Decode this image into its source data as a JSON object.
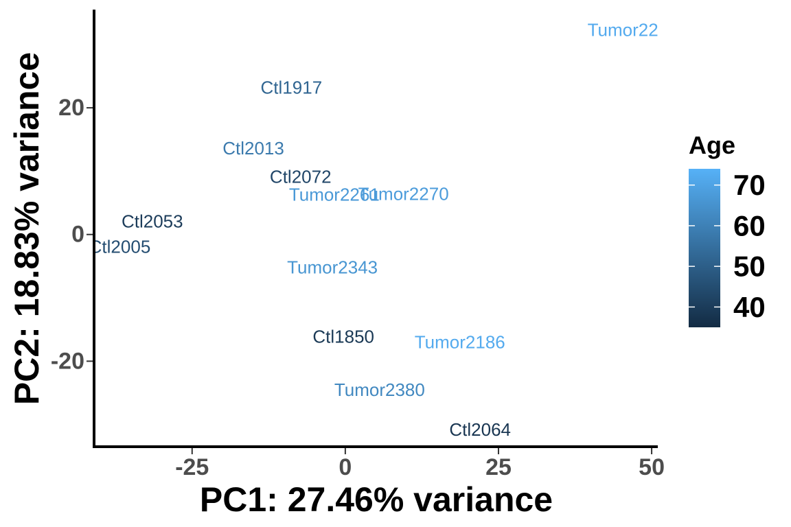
{
  "chart_data": {
    "type": "scatter",
    "xlabel": "PC1: 27.46% variance",
    "ylabel": "PC2: 18.83% variance",
    "xlim": [
      -41,
      51
    ],
    "ylim": [
      -33.5,
      35.5
    ],
    "x_ticks": [
      -25,
      0,
      25,
      50
    ],
    "x_tick_labels": [
      "-25",
      "0",
      "25",
      "50"
    ],
    "y_ticks": [
      -20,
      0,
      20
    ],
    "y_tick_labels": [
      "-20",
      "0",
      "20"
    ],
    "grid": false,
    "legend": {
      "title": "Age",
      "placement": "right",
      "range": [
        35,
        74
      ],
      "ticks": [
        40,
        50,
        60,
        70
      ],
      "tick_labels": [
        "40",
        "50",
        "60",
        "70"
      ],
      "color_low": "#132B43",
      "color_high": "#56B1F7"
    },
    "points": [
      {
        "label": "Tumor22",
        "x": 45.3,
        "y": 32.3,
        "age": 72
      },
      {
        "label": "Ctl1917",
        "x": -8.8,
        "y": 23.2,
        "age": 52
      },
      {
        "label": "Ctl2013",
        "x": -15.0,
        "y": 13.6,
        "age": 58
      },
      {
        "label": "Ctl2072",
        "x": -7.3,
        "y": 9.1,
        "age": 43
      },
      {
        "label": "Tumor2261",
        "x": -1.8,
        "y": 6.3,
        "age": 67
      },
      {
        "label": "Tumor2270",
        "x": 9.5,
        "y": 6.4,
        "age": 68
      },
      {
        "label": "Ctl2053",
        "x": -31.5,
        "y": 2.1,
        "age": 40
      },
      {
        "label": "Ctl2005",
        "x": -36.8,
        "y": -1.9,
        "age": 45
      },
      {
        "label": "Tumor2343",
        "x": -2.1,
        "y": -5.2,
        "age": 66
      },
      {
        "label": "Ctl1850",
        "x": -0.3,
        "y": -16.1,
        "age": 39
      },
      {
        "label": "Tumor2186",
        "x": 18.7,
        "y": -17.0,
        "age": 72
      },
      {
        "label": "Tumor2380",
        "x": 5.6,
        "y": -24.5,
        "age": 62
      },
      {
        "label": "Ctl2064",
        "x": 22.0,
        "y": -30.8,
        "age": 38
      }
    ]
  }
}
